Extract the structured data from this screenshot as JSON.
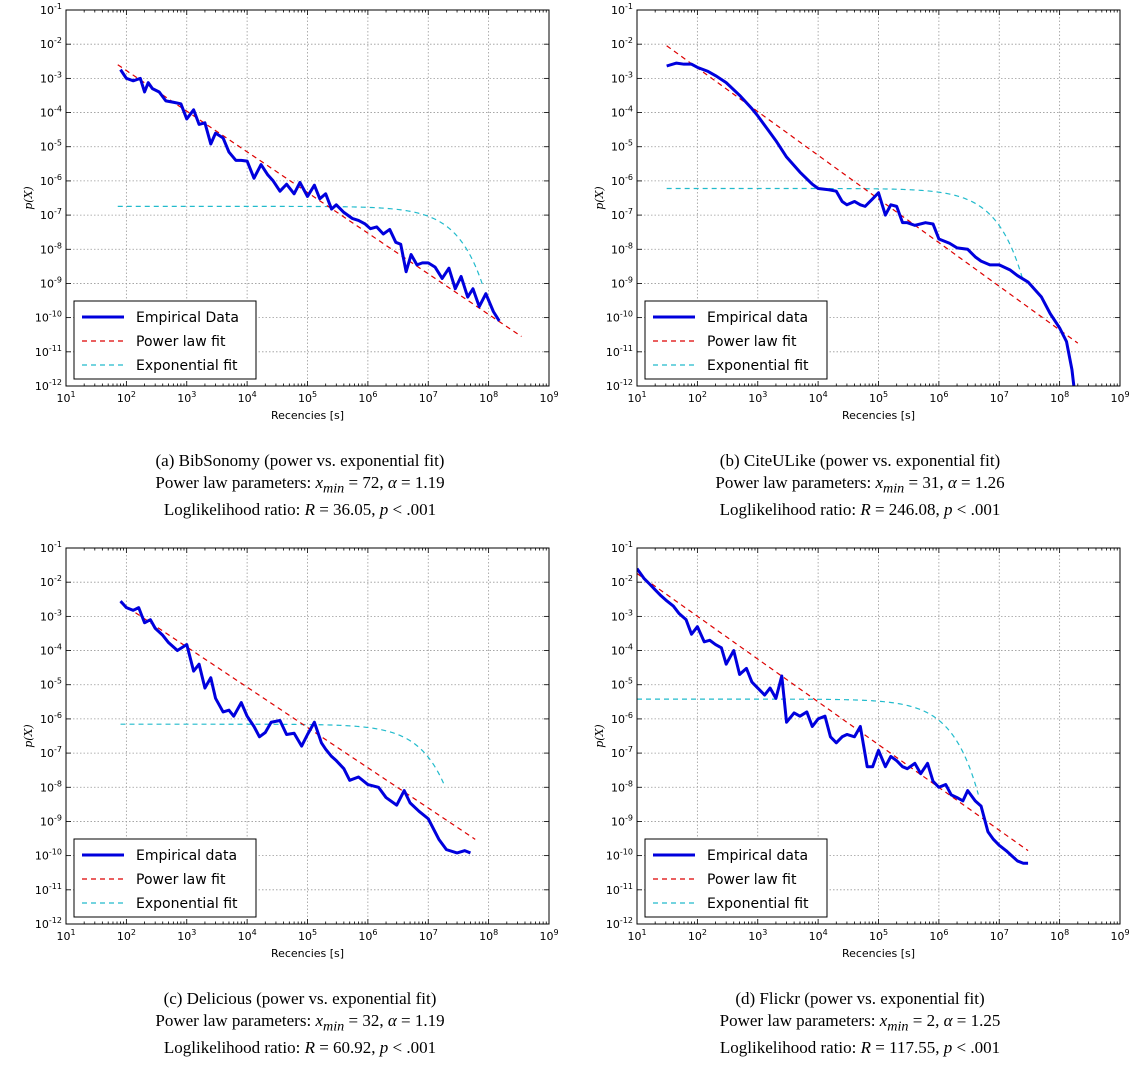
{
  "colors": {
    "empirical": "#0000dd",
    "power": "#dd0000",
    "exponential": "#22bbcc",
    "grid": "#999999"
  },
  "chart_data": [
    {
      "type": "line",
      "xlabel": "Recencies [s]",
      "ylabel": "p(X)",
      "xscale": "log",
      "yscale": "log",
      "xlim": [
        10,
        1000000000
      ],
      "ylim": [
        1e-12,
        0.1
      ],
      "grid": true,
      "legend_position": "lower-left",
      "legend": [
        "Empirical Data",
        "Power law fit",
        "Exponential fit"
      ],
      "series": [
        {
          "name": "Empirical Data",
          "style": "thick-solid",
          "x": [
            80,
            100,
            130,
            170,
            200,
            230,
            270,
            350,
            450,
            600,
            800,
            1000,
            1300,
            1600,
            2000,
            2500,
            3000,
            4000,
            5000,
            6500,
            8000,
            10000,
            13000,
            17000,
            22000,
            27000,
            35000,
            45000,
            60000,
            75000,
            100000,
            130000,
            160000,
            200000,
            250000,
            300000,
            400000,
            550000,
            700000,
            900000,
            1100000,
            1400000,
            1800000,
            2300000,
            2900000,
            3500000,
            4300000,
            5200000,
            6500000,
            8000000,
            10000000,
            13000000,
            17000000,
            22000000,
            28000000,
            35000000,
            45000000,
            55000000,
            70000000,
            90000000,
            120000000,
            150000000
          ],
          "y": [
            0.0018,
            0.001,
            0.00085,
            0.001,
            0.0004,
            0.00075,
            0.0005,
            0.0004,
            0.00022,
            0.0002,
            0.00018,
            6.5e-05,
            0.00012,
            4.5e-05,
            5e-05,
            1.2e-05,
            2.5e-05,
            1.8e-05,
            7e-06,
            4e-06,
            4e-06,
            3.8e-06,
            1.2e-06,
            3e-06,
            1.5e-06,
            1e-06,
            5e-07,
            8e-07,
            4.2e-07,
            9e-07,
            3.5e-07,
            7.5e-07,
            3e-07,
            4.2e-07,
            1.5e-07,
            2e-07,
            1.2e-07,
            8e-08,
            7e-08,
            5.5e-08,
            4e-08,
            4.5e-08,
            2.8e-08,
            3.8e-08,
            1.6e-08,
            1.4e-08,
            2.2e-09,
            7e-09,
            3.5e-09,
            4e-09,
            4e-09,
            3e-09,
            1.4e-09,
            2.8e-09,
            7e-10,
            1.6e-09,
            4e-10,
            7e-10,
            2.1e-10,
            5e-10,
            1.5e-10,
            8e-11
          ]
        },
        {
          "name": "Power law fit",
          "style": "dashed",
          "x": [
            72,
            350000000
          ],
          "y": [
            0.0025,
            2.8e-11
          ]
        },
        {
          "name": "Exponential fit",
          "style": "dashed",
          "plateau": 1.8e-07,
          "cutoff_x": 15000000,
          "x_start": 72,
          "x_end": 80000000
        }
      ]
    },
    {
      "type": "line",
      "xlabel": "Recencies [s]",
      "ylabel": "p(X)",
      "xscale": "log",
      "yscale": "log",
      "xlim": [
        10,
        1000000000
      ],
      "ylim": [
        1e-12,
        0.1
      ],
      "grid": true,
      "legend_position": "lower-left",
      "legend": [
        "Empirical data",
        "Power law fit",
        "Exponential fit"
      ],
      "series": [
        {
          "name": "Empirical data",
          "style": "thick-solid",
          "x": [
            31,
            45,
            60,
            80,
            100,
            150,
            200,
            300,
            500,
            800,
            1000,
            1500,
            2000,
            3000,
            5000,
            8000,
            10000,
            15000,
            20000,
            25000,
            30000,
            40000,
            50000,
            60000,
            80000,
            100000,
            130000,
            160000,
            200000,
            250000,
            300000,
            400000,
            600000,
            800000,
            1000000,
            1500000,
            2000000,
            3000000,
            4000000,
            5000000,
            7000000,
            10000000,
            15000000,
            20000000,
            30000000,
            50000000,
            70000000,
            100000000,
            130000000,
            160000000,
            180000000
          ],
          "y": [
            0.0023,
            0.0028,
            0.0026,
            0.0026,
            0.0021,
            0.0016,
            0.0012,
            0.00075,
            0.00032,
            0.00013,
            8e-05,
            3e-05,
            1.5e-05,
            5e-06,
            1.8e-06,
            8e-07,
            6e-07,
            5.5e-07,
            5e-07,
            2.5e-07,
            2e-07,
            2.5e-07,
            2e-07,
            1.8e-07,
            3e-07,
            4.5e-07,
            1e-07,
            2e-07,
            1.8e-07,
            6e-08,
            6e-08,
            5e-08,
            6e-08,
            5.5e-08,
            2e-08,
            1.5e-08,
            1.1e-08,
            1e-08,
            6e-09,
            4.5e-09,
            3.5e-09,
            3.5e-09,
            2.5e-09,
            1.7e-09,
            1.1e-09,
            4e-10,
            1.3e-10,
            5e-11,
            2e-11,
            3e-12,
            5e-13
          ]
        },
        {
          "name": "Power law fit",
          "style": "dashed",
          "x": [
            31,
            200000000
          ],
          "y": [
            0.009,
            1.8e-11
          ]
        },
        {
          "name": "Exponential fit",
          "style": "dashed",
          "plateau": 6e-07,
          "cutoff_x": 4000000,
          "x_start": 31,
          "x_end": 25000000
        }
      ]
    },
    {
      "type": "line",
      "xlabel": "Recencies [s]",
      "ylabel": "p(X)",
      "xscale": "log",
      "yscale": "log",
      "xlim": [
        10,
        1000000000
      ],
      "ylim": [
        1e-12,
        0.1
      ],
      "grid": true,
      "legend_position": "lower-left",
      "legend": [
        "Empirical data",
        "Power law fit",
        "Exponential fit"
      ],
      "series": [
        {
          "name": "Empirical data",
          "style": "thick-solid",
          "x": [
            80,
            100,
            130,
            160,
            200,
            250,
            300,
            400,
            500,
            700,
            1000,
            1300,
            1600,
            2000,
            2500,
            3000,
            4000,
            5000,
            6000,
            8000,
            10000,
            13000,
            16000,
            20000,
            25000,
            35000,
            45000,
            60000,
            80000,
            100000,
            130000,
            170000,
            200000,
            250000,
            300000,
            400000,
            500000,
            700000,
            1000000,
            1500000,
            2000000,
            3000000,
            4000000,
            5000000,
            7000000,
            10000000,
            15000000,
            20000000,
            30000000,
            40000000,
            50000000
          ],
          "y": [
            0.0028,
            0.0018,
            0.0015,
            0.0018,
            0.00065,
            0.0008,
            0.00045,
            0.00028,
            0.00017,
            0.0001,
            0.00015,
            2.5e-05,
            4e-05,
            8e-06,
            1.6e-05,
            4e-06,
            1.6e-06,
            1.8e-06,
            1.2e-06,
            3e-06,
            1.2e-06,
            6e-07,
            3e-07,
            4e-07,
            8e-07,
            9e-07,
            3.5e-07,
            3.8e-07,
            1.6e-07,
            3.5e-07,
            8e-07,
            2e-07,
            1.3e-07,
            8e-08,
            6e-08,
            3.5e-08,
            1.6e-08,
            2e-08,
            1.2e-08,
            1e-08,
            5e-09,
            3e-09,
            8e-09,
            3.5e-09,
            2e-09,
            1.2e-09,
            3e-10,
            1.5e-10,
            1.2e-10,
            1.4e-10,
            1.2e-10
          ]
        },
        {
          "name": "Power law fit",
          "style": "dashed",
          "x": [
            80,
            60000000
          ],
          "y": [
            0.0025,
            3e-10
          ]
        },
        {
          "name": "Exponential fit",
          "style": "dashed",
          "plateau": 7e-07,
          "cutoff_x": 4500000,
          "x_start": 80,
          "x_end": 18000000
        }
      ]
    },
    {
      "type": "line",
      "xlabel": "Recencies [s]",
      "ylabel": "p(X)",
      "xscale": "log",
      "yscale": "log",
      "xlim": [
        10,
        1000000000
      ],
      "ylim": [
        1e-12,
        0.1
      ],
      "grid": true,
      "legend_position": "lower-left",
      "legend": [
        "Empirical data",
        "Power law fit",
        "Exponential fit"
      ],
      "series": [
        {
          "name": "Empirical data",
          "style": "thick-solid",
          "x": [
            10,
            13,
            16,
            20,
            25,
            30,
            40,
            50,
            65,
            80,
            100,
            130,
            160,
            200,
            250,
            300,
            400,
            500,
            650,
            800,
            1000,
            1300,
            1600,
            2000,
            2500,
            3000,
            4000,
            5000,
            6500,
            8000,
            10000,
            13000,
            16000,
            20000,
            25000,
            30000,
            40000,
            50000,
            65000,
            80000,
            100000,
            130000,
            160000,
            200000,
            250000,
            300000,
            400000,
            500000,
            650000,
            800000,
            1000000,
            1300000,
            1600000,
            2000000,
            2500000,
            3000000,
            4000000,
            5000000,
            6500000,
            8000000,
            10000000,
            13000000,
            16000000,
            20000000,
            25000000,
            30000000
          ],
          "y": [
            0.025,
            0.013,
            0.009,
            0.006,
            0.004,
            0.003,
            0.002,
            0.0012,
            0.0008,
            0.0003,
            0.0005,
            0.00018,
            0.0002,
            0.00015,
            0.00012,
            4e-05,
            0.0001,
            2e-05,
            3e-05,
            1.2e-05,
            8e-06,
            5e-06,
            8e-06,
            4e-06,
            1.8e-05,
            8e-07,
            1.5e-06,
            1.2e-06,
            1.6e-06,
            6e-07,
            1e-06,
            1.2e-06,
            3e-07,
            2e-07,
            3e-07,
            3.5e-07,
            3e-07,
            6e-07,
            4e-08,
            4e-08,
            1.2e-07,
            4e-08,
            8e-08,
            6e-08,
            4e-08,
            3.5e-08,
            5e-08,
            2.5e-08,
            5e-08,
            1.5e-08,
            1e-08,
            1.2e-08,
            6e-09,
            5e-09,
            4e-09,
            8e-09,
            4e-09,
            2.8e-09,
            5e-10,
            3e-10,
            2e-10,
            1.4e-10,
            1e-10,
            7e-11,
            6e-11,
            6e-11
          ]
        },
        {
          "name": "Power law fit",
          "style": "dashed",
          "x": [
            10,
            30000000
          ],
          "y": [
            0.018,
            1.4e-10
          ]
        },
        {
          "name": "Exponential fit",
          "style": "dashed",
          "plateau": 3.8e-06,
          "cutoff_x": 700000,
          "x_start": 10,
          "x_end": 4500000
        }
      ]
    }
  ],
  "captions": [
    {
      "title": "(a) BibSonomy (power vs. exponential fit)",
      "params": "Power law parameters: ",
      "xmin": "72",
      "alpha": "1.19",
      "lr_label": "Loglikelihood ratio: ",
      "R": "36.05",
      "p": ".001"
    },
    {
      "title": "(b) CiteULike (power vs. exponential fit)",
      "params": "Power law parameters: ",
      "xmin": "31",
      "alpha": "1.26",
      "lr_label": "Loglikelihood ratio: ",
      "R": "246.08",
      "p": ".001"
    },
    {
      "title": "(c) Delicious (power vs. exponential fit)",
      "params": "Power law parameters: ",
      "xmin": "32",
      "alpha": "1.19",
      "lr_label": "Loglikelihood ratio: ",
      "R": "60.92",
      "p": ".001"
    },
    {
      "title": "(d) Flickr (power vs. exponential fit)",
      "params": "Power law parameters: ",
      "xmin": "2",
      "alpha": "1.25",
      "lr_label": "Loglikelihood ratio: ",
      "R": "117.55",
      "p": ".001"
    }
  ]
}
